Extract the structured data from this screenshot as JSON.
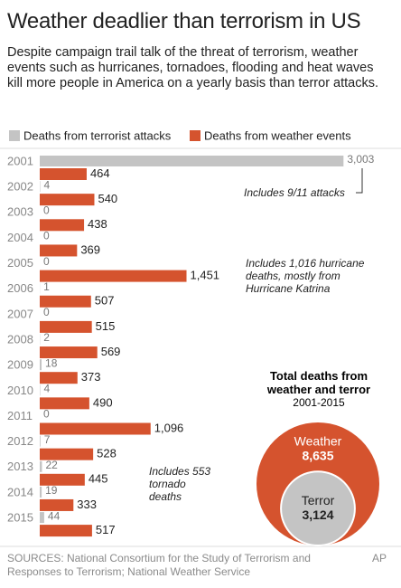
{
  "chart_data": {
    "type": "bar",
    "orientation": "horizontal",
    "title": "Weather deadlier than terrorism in US",
    "subtitle": "Despite campaign trail talk of the threat of terrorism, weather events such as hurricanes, tornadoes, flooding and heat waves kill more people in America on a yearly basis than terror attacks.",
    "categories": [
      "2001",
      "2002",
      "2003",
      "2004",
      "2005",
      "2006",
      "2007",
      "2008",
      "2009",
      "2010",
      "2011",
      "2012",
      "2013",
      "2014",
      "2015"
    ],
    "series": [
      {
        "name": "Deaths from terrorist attacks",
        "color": "#c4c4c4",
        "values": [
          3003,
          4,
          0,
          0,
          0,
          1,
          0,
          2,
          18,
          4,
          0,
          7,
          22,
          19,
          44
        ],
        "value_labels": [
          "3,003",
          "4",
          "0",
          "0",
          "0",
          "1",
          "0",
          "2",
          "18",
          "4",
          "0",
          "7",
          "22",
          "19",
          "44"
        ]
      },
      {
        "name": "Deaths from weather events",
        "color": "#d5532e",
        "values": [
          464,
          540,
          438,
          369,
          1451,
          507,
          515,
          569,
          373,
          490,
          1096,
          528,
          445,
          333,
          517
        ],
        "value_labels": [
          "464",
          "540",
          "438",
          "369",
          "1,451",
          "507",
          "515",
          "569",
          "373",
          "490",
          "1,096",
          "528",
          "445",
          "333",
          "517"
        ]
      }
    ],
    "xlim": [
      0,
      3000
    ],
    "annotations": [
      "Includes 9/11 attacks",
      "Includes 1,016 hurricane deaths, mostly from Hurricane Katrina",
      "Includes 553 tornado deaths"
    ],
    "inset": {
      "type": "nested-circles",
      "title": "Total deaths from weather and terror",
      "subtitle": "2001-2015",
      "items": [
        {
          "name": "Weather",
          "value": 8635,
          "value_label": "8,635",
          "color": "#d5532e"
        },
        {
          "name": "Terror",
          "value": 3124,
          "value_label": "3,124",
          "color": "#c4c4c4"
        }
      ]
    }
  },
  "source": "SOURCES: National Consortium for the Study of Terrorism and Responses to Terrorism; National Weather Service",
  "credit": "AP"
}
